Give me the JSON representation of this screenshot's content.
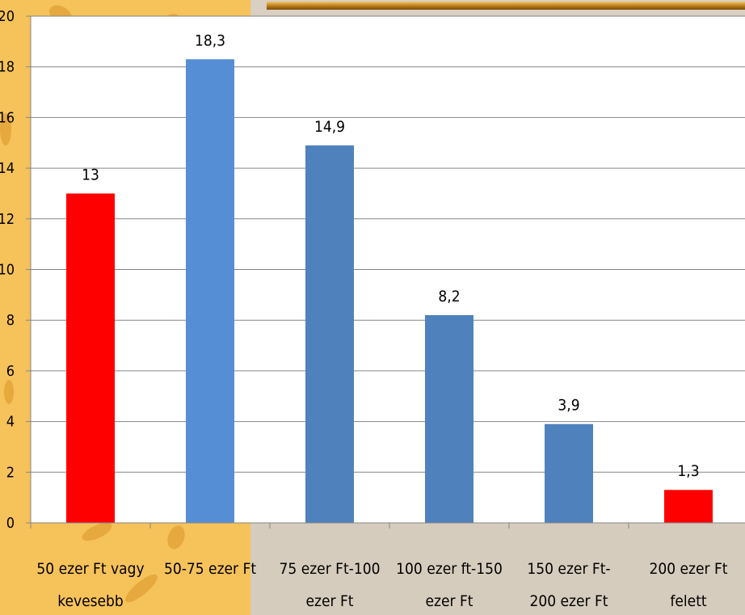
{
  "chart_data": {
    "type": "bar",
    "title": "",
    "xlabel": "",
    "ylabel": "",
    "ylim": [
      0,
      20
    ],
    "yticks": [
      0,
      2,
      4,
      6,
      8,
      10,
      12,
      14,
      16,
      18,
      20
    ],
    "grid": true,
    "categories": [
      [
        "50 ezer Ft vagy",
        "kevesebb"
      ],
      [
        "50-75 ezer Ft",
        ""
      ],
      [
        "75 ezer Ft-100",
        "ezer Ft"
      ],
      [
        "100 ezer ft-150",
        "ezer Ft"
      ],
      [
        "150 ezer Ft-",
        "200 ezer Ft"
      ],
      [
        "200 ezer Ft",
        "felett"
      ]
    ],
    "values": [
      13,
      18.3,
      14.9,
      8.2,
      3.9,
      1.3
    ],
    "value_labels": [
      "13",
      "18,3",
      "14,9",
      "8,2",
      "3,9",
      "1,3"
    ],
    "colors": [
      "#ff0000",
      "#558ed5",
      "#4f81bd",
      "#4f81bd",
      "#4f81bd",
      "#ff0000"
    ]
  }
}
